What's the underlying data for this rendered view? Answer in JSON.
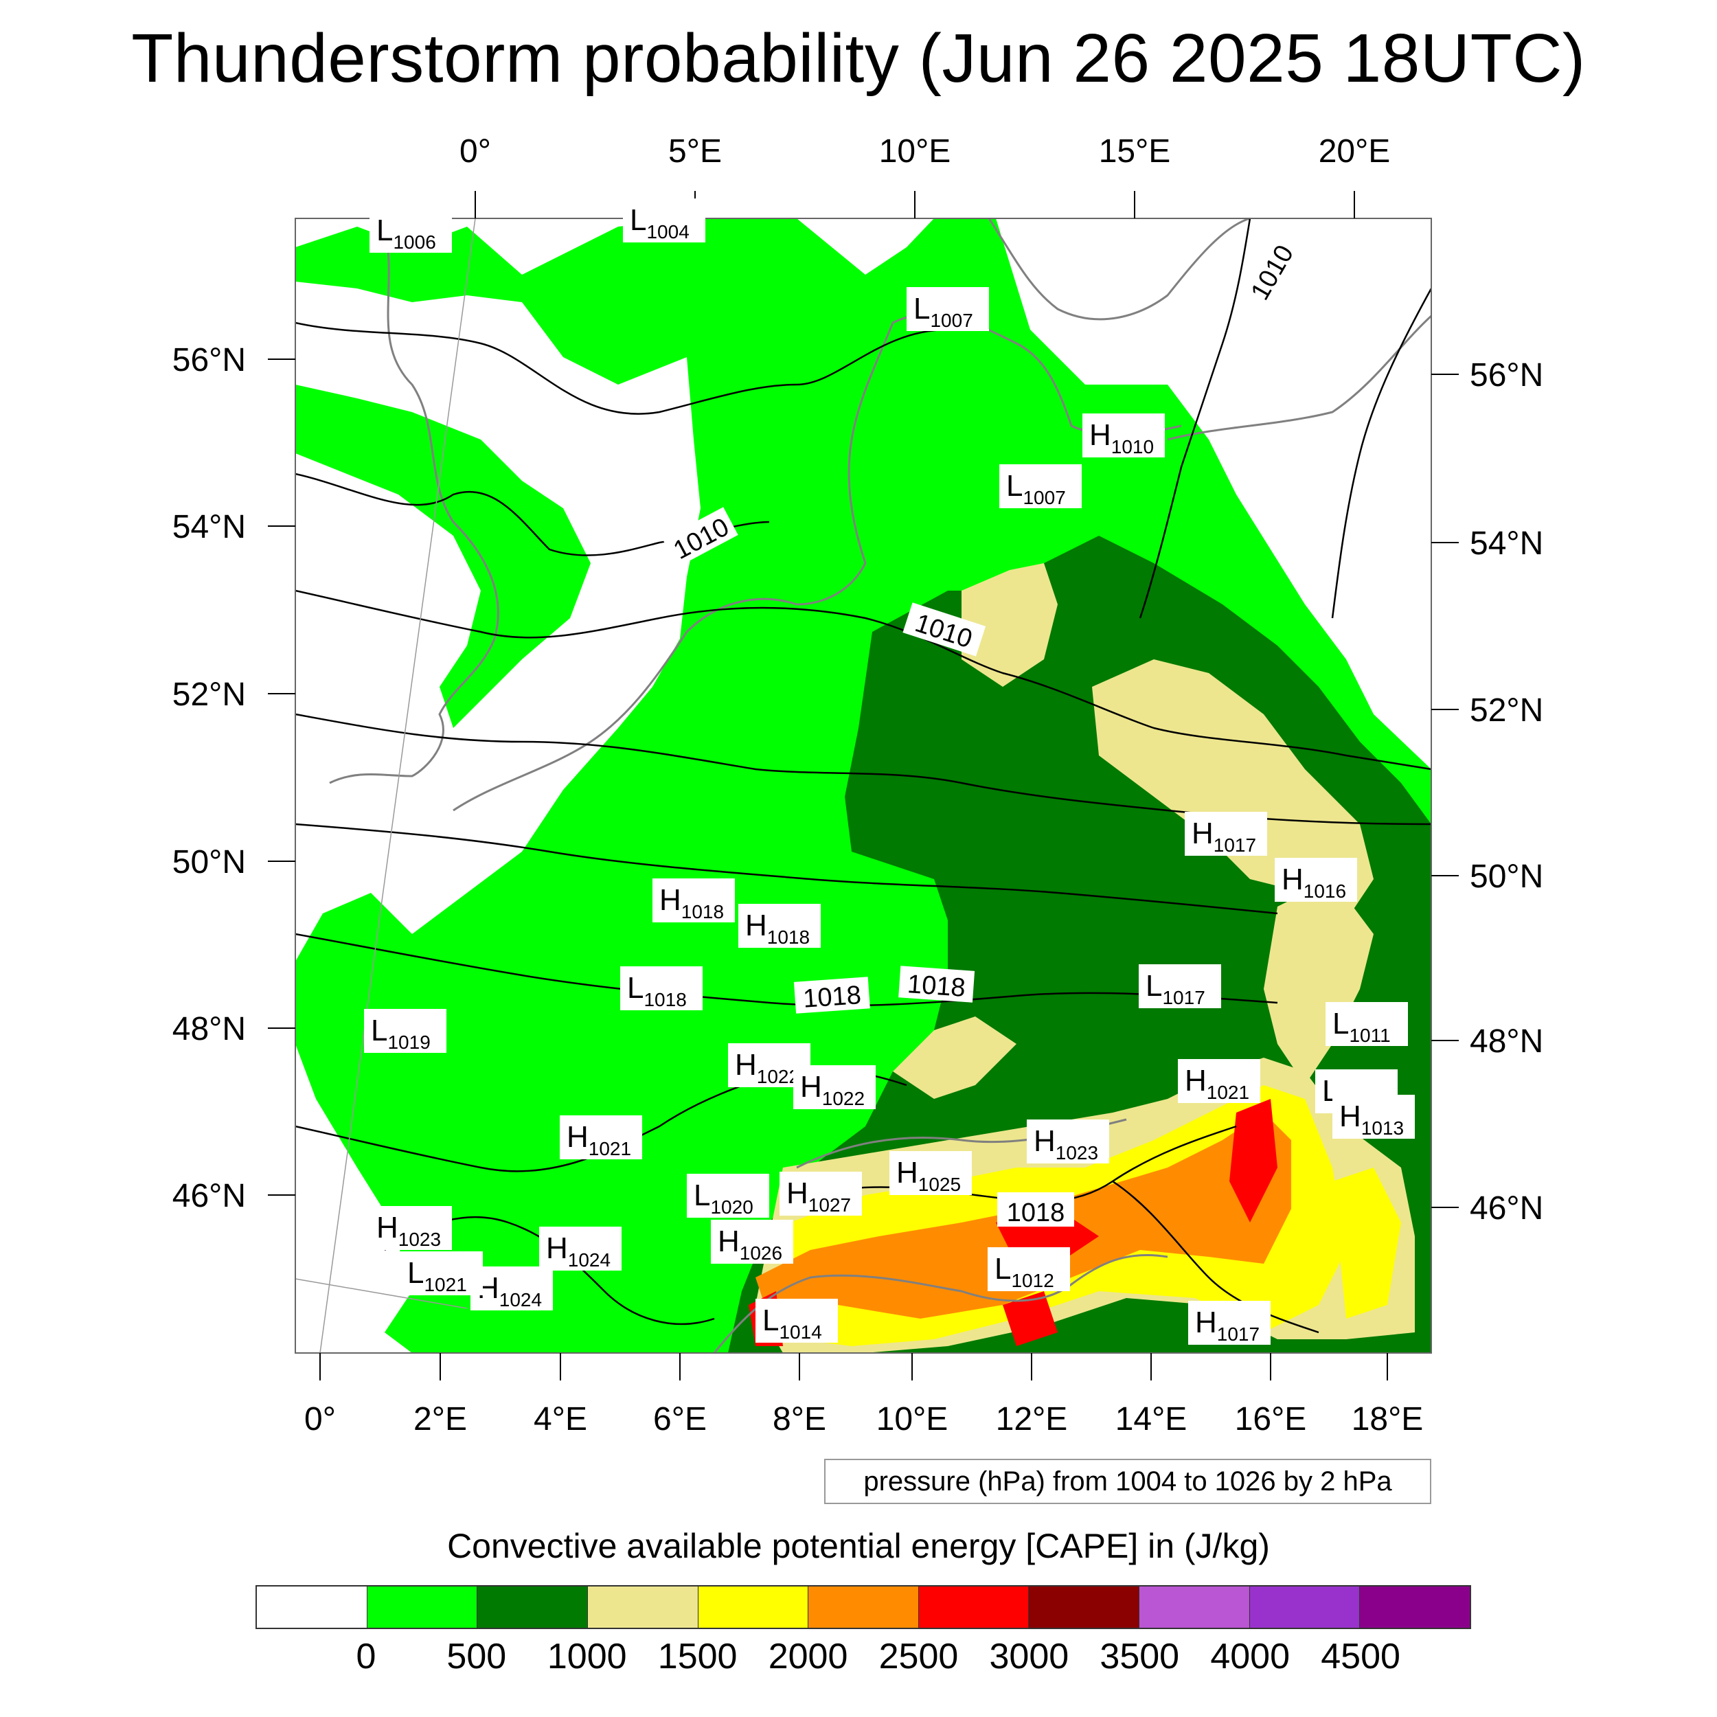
{
  "title": "Thunderstorm probability (Jun 26 2025 18UTC)",
  "axes": {
    "top_ticks": [
      "0°",
      "5°E",
      "10°E",
      "15°E",
      "20°E"
    ],
    "bottom_ticks": [
      "0°",
      "2°E",
      "4°E",
      "6°E",
      "8°E",
      "10°E",
      "12°E",
      "14°E",
      "16°E",
      "18°E"
    ],
    "left_ticks": [
      "56°N",
      "54°N",
      "52°N",
      "50°N",
      "48°N",
      "46°N"
    ],
    "right_ticks": [
      "56°N",
      "54°N",
      "52°N",
      "50°N",
      "48°N",
      "46°N"
    ]
  },
  "isobar_labels": [
    "1010",
    "1010",
    "1010",
    "1018",
    "1018",
    "1018",
    "1010"
  ],
  "pressure_centers": [
    {
      "type": "L",
      "value": "1006"
    },
    {
      "type": "L",
      "value": "1004"
    },
    {
      "type": "L",
      "value": "1007"
    },
    {
      "type": "H",
      "value": "1010"
    },
    {
      "type": "L",
      "value": "1007"
    },
    {
      "type": "H",
      "value": "1017"
    },
    {
      "type": "H",
      "value": "1016"
    },
    {
      "type": "H",
      "value": "1018"
    },
    {
      "type": "H",
      "value": "1018"
    },
    {
      "type": "L",
      "value": "1018"
    },
    {
      "type": "L",
      "value": "1017"
    },
    {
      "type": "L",
      "value": "1011"
    },
    {
      "type": "L",
      "value": "1019"
    },
    {
      "type": "H",
      "value": "1022"
    },
    {
      "type": "H",
      "value": "1022"
    },
    {
      "type": "H",
      "value": "1021"
    },
    {
      "type": "L",
      "value": "1011"
    },
    {
      "type": "H",
      "value": "1013"
    },
    {
      "type": "H",
      "value": "1021"
    },
    {
      "type": "H",
      "value": "1023"
    },
    {
      "type": "H",
      "value": "1025"
    },
    {
      "type": "H",
      "value": "1027"
    },
    {
      "type": "L",
      "value": "1020"
    },
    {
      "type": "H",
      "value": "1026"
    },
    {
      "type": "H",
      "value": "1024"
    },
    {
      "type": "H",
      "value": "1024"
    },
    {
      "type": "H",
      "value": "1023"
    },
    {
      "type": "L",
      "value": "1021"
    },
    {
      "type": "L",
      "value": "1012"
    },
    {
      "type": "L",
      "value": "1014"
    },
    {
      "type": "H",
      "value": "1017"
    }
  ],
  "pressure_note": "pressure (hPa) from 1004 to 1026 by 2 hPa",
  "colorbar": {
    "title": "Convective available potential energy [CAPE] in (J/kg)",
    "colors": [
      "#ffffff",
      "#00ff00",
      "#007a00",
      "#ede68e",
      "#ffff00",
      "#ff8c00",
      "#ff0000",
      "#8b0000",
      "#ba55d3",
      "#9932cc",
      "#8b008b"
    ],
    "labels": [
      "0",
      "500",
      "1000",
      "1500",
      "2000",
      "2500",
      "3000",
      "3500",
      "4000",
      "4500"
    ]
  },
  "map_colors": {
    "land_outline": "#808080",
    "isobar": "#000000",
    "cape_0_500": "#00ff00",
    "cape_500_1000": "#007a00",
    "cape_1000_1500": "#ede68e",
    "cape_1500_2000": "#ffff00",
    "cape_2000_2500": "#ff8c00",
    "cape_2500_3000": "#ff0000"
  }
}
